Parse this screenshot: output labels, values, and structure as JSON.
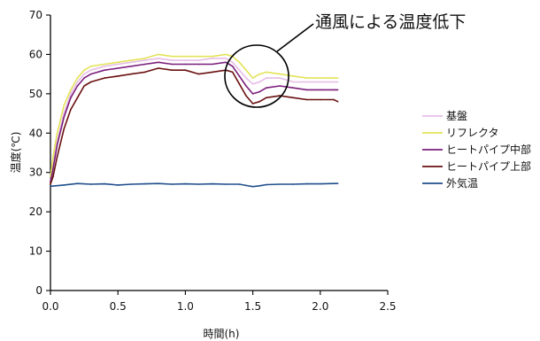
{
  "chart_data": {
    "type": "line",
    "title": "",
    "xlabel": "時間(h)",
    "ylabel": "温度(℃)",
    "xlim": [
      0,
      2.5
    ],
    "ylim": [
      0,
      70
    ],
    "x_ticks": [
      "0.0",
      "0.5",
      "1.0",
      "1.5",
      "2.0",
      "2.5"
    ],
    "y_ticks": [
      "0",
      "10",
      "20",
      "30",
      "40",
      "50",
      "60",
      "70"
    ],
    "grid": false,
    "legend_position": "right",
    "annotation": "通風による温度低下",
    "series": [
      {
        "name": "基盤",
        "color": "#e6bde6",
        "x": [
          0,
          0.02,
          0.05,
          0.1,
          0.15,
          0.2,
          0.25,
          0.3,
          0.4,
          0.5,
          0.6,
          0.7,
          0.8,
          0.9,
          1.0,
          1.1,
          1.2,
          1.3,
          1.35,
          1.4,
          1.45,
          1.5,
          1.55,
          1.6,
          1.7,
          1.8,
          1.9,
          2.0,
          2.1,
          2.13
        ],
        "y": [
          28,
          32,
          38,
          45,
          50,
          53,
          55,
          56,
          57,
          57.5,
          58,
          58.5,
          59,
          58.5,
          58.5,
          58.5,
          59,
          59,
          58,
          56,
          54,
          52.5,
          53,
          54,
          54,
          53,
          53,
          53,
          53,
          53
        ]
      },
      {
        "name": "リフレクタ",
        "color": "#e3e35a",
        "x": [
          0,
          0.02,
          0.05,
          0.1,
          0.15,
          0.2,
          0.25,
          0.3,
          0.4,
          0.5,
          0.6,
          0.7,
          0.8,
          0.9,
          1.0,
          1.1,
          1.2,
          1.3,
          1.35,
          1.4,
          1.45,
          1.5,
          1.55,
          1.6,
          1.7,
          1.8,
          1.9,
          2.0,
          2.1,
          2.13
        ],
        "y": [
          29,
          34,
          40,
          47,
          51,
          54,
          56,
          57,
          57.5,
          58,
          58.5,
          59,
          60,
          59.5,
          59.5,
          59.5,
          59.5,
          60,
          59.5,
          58,
          56,
          54,
          55,
          55.5,
          55,
          54.5,
          54,
          54,
          54,
          54
        ]
      },
      {
        "name": "ヒートパイプ中部",
        "color": "#7b1f7b",
        "x": [
          0,
          0.02,
          0.05,
          0.1,
          0.15,
          0.2,
          0.25,
          0.3,
          0.4,
          0.5,
          0.6,
          0.7,
          0.8,
          0.9,
          1.0,
          1.1,
          1.2,
          1.3,
          1.35,
          1.4,
          1.45,
          1.5,
          1.55,
          1.6,
          1.7,
          1.8,
          1.9,
          2.0,
          2.1,
          2.13
        ],
        "y": [
          27.5,
          31,
          37,
          44,
          49,
          52,
          54,
          55,
          56,
          56.5,
          57,
          57.5,
          58,
          57.5,
          57.5,
          57.5,
          57.5,
          58,
          57,
          54.5,
          52,
          50,
          50.5,
          51.5,
          52,
          51.5,
          51,
          51,
          51,
          51
        ]
      },
      {
        "name": "ヒートパイプ上部",
        "color": "#6a1010",
        "x": [
          0,
          0.02,
          0.05,
          0.1,
          0.15,
          0.2,
          0.25,
          0.3,
          0.4,
          0.5,
          0.6,
          0.7,
          0.8,
          0.9,
          1.0,
          1.1,
          1.2,
          1.3,
          1.35,
          1.4,
          1.45,
          1.5,
          1.55,
          1.6,
          1.7,
          1.8,
          1.9,
          2.0,
          2.1,
          2.13
        ],
        "y": [
          27,
          29,
          34,
          41,
          46,
          49,
          52,
          53,
          54,
          54.5,
          55,
          55.5,
          56.5,
          56,
          56,
          55,
          55.5,
          56,
          55.5,
          52.5,
          49.5,
          47.5,
          48,
          49,
          49.5,
          49,
          48.5,
          48.5,
          48.5,
          48
        ]
      },
      {
        "name": "外気温",
        "color": "#1f4e8c",
        "x": [
          0,
          0.1,
          0.2,
          0.3,
          0.4,
          0.5,
          0.6,
          0.7,
          0.8,
          0.9,
          1.0,
          1.1,
          1.2,
          1.3,
          1.4,
          1.45,
          1.5,
          1.55,
          1.6,
          1.7,
          1.8,
          1.9,
          2.0,
          2.1,
          2.13
        ],
        "y": [
          26.5,
          26.8,
          27.2,
          27,
          27.1,
          26.8,
          27,
          27.1,
          27.2,
          27,
          27.1,
          27,
          27.1,
          27,
          27,
          26.7,
          26.4,
          26.6,
          26.9,
          27,
          27,
          27.1,
          27.1,
          27.2,
          27.2
        ]
      }
    ]
  }
}
